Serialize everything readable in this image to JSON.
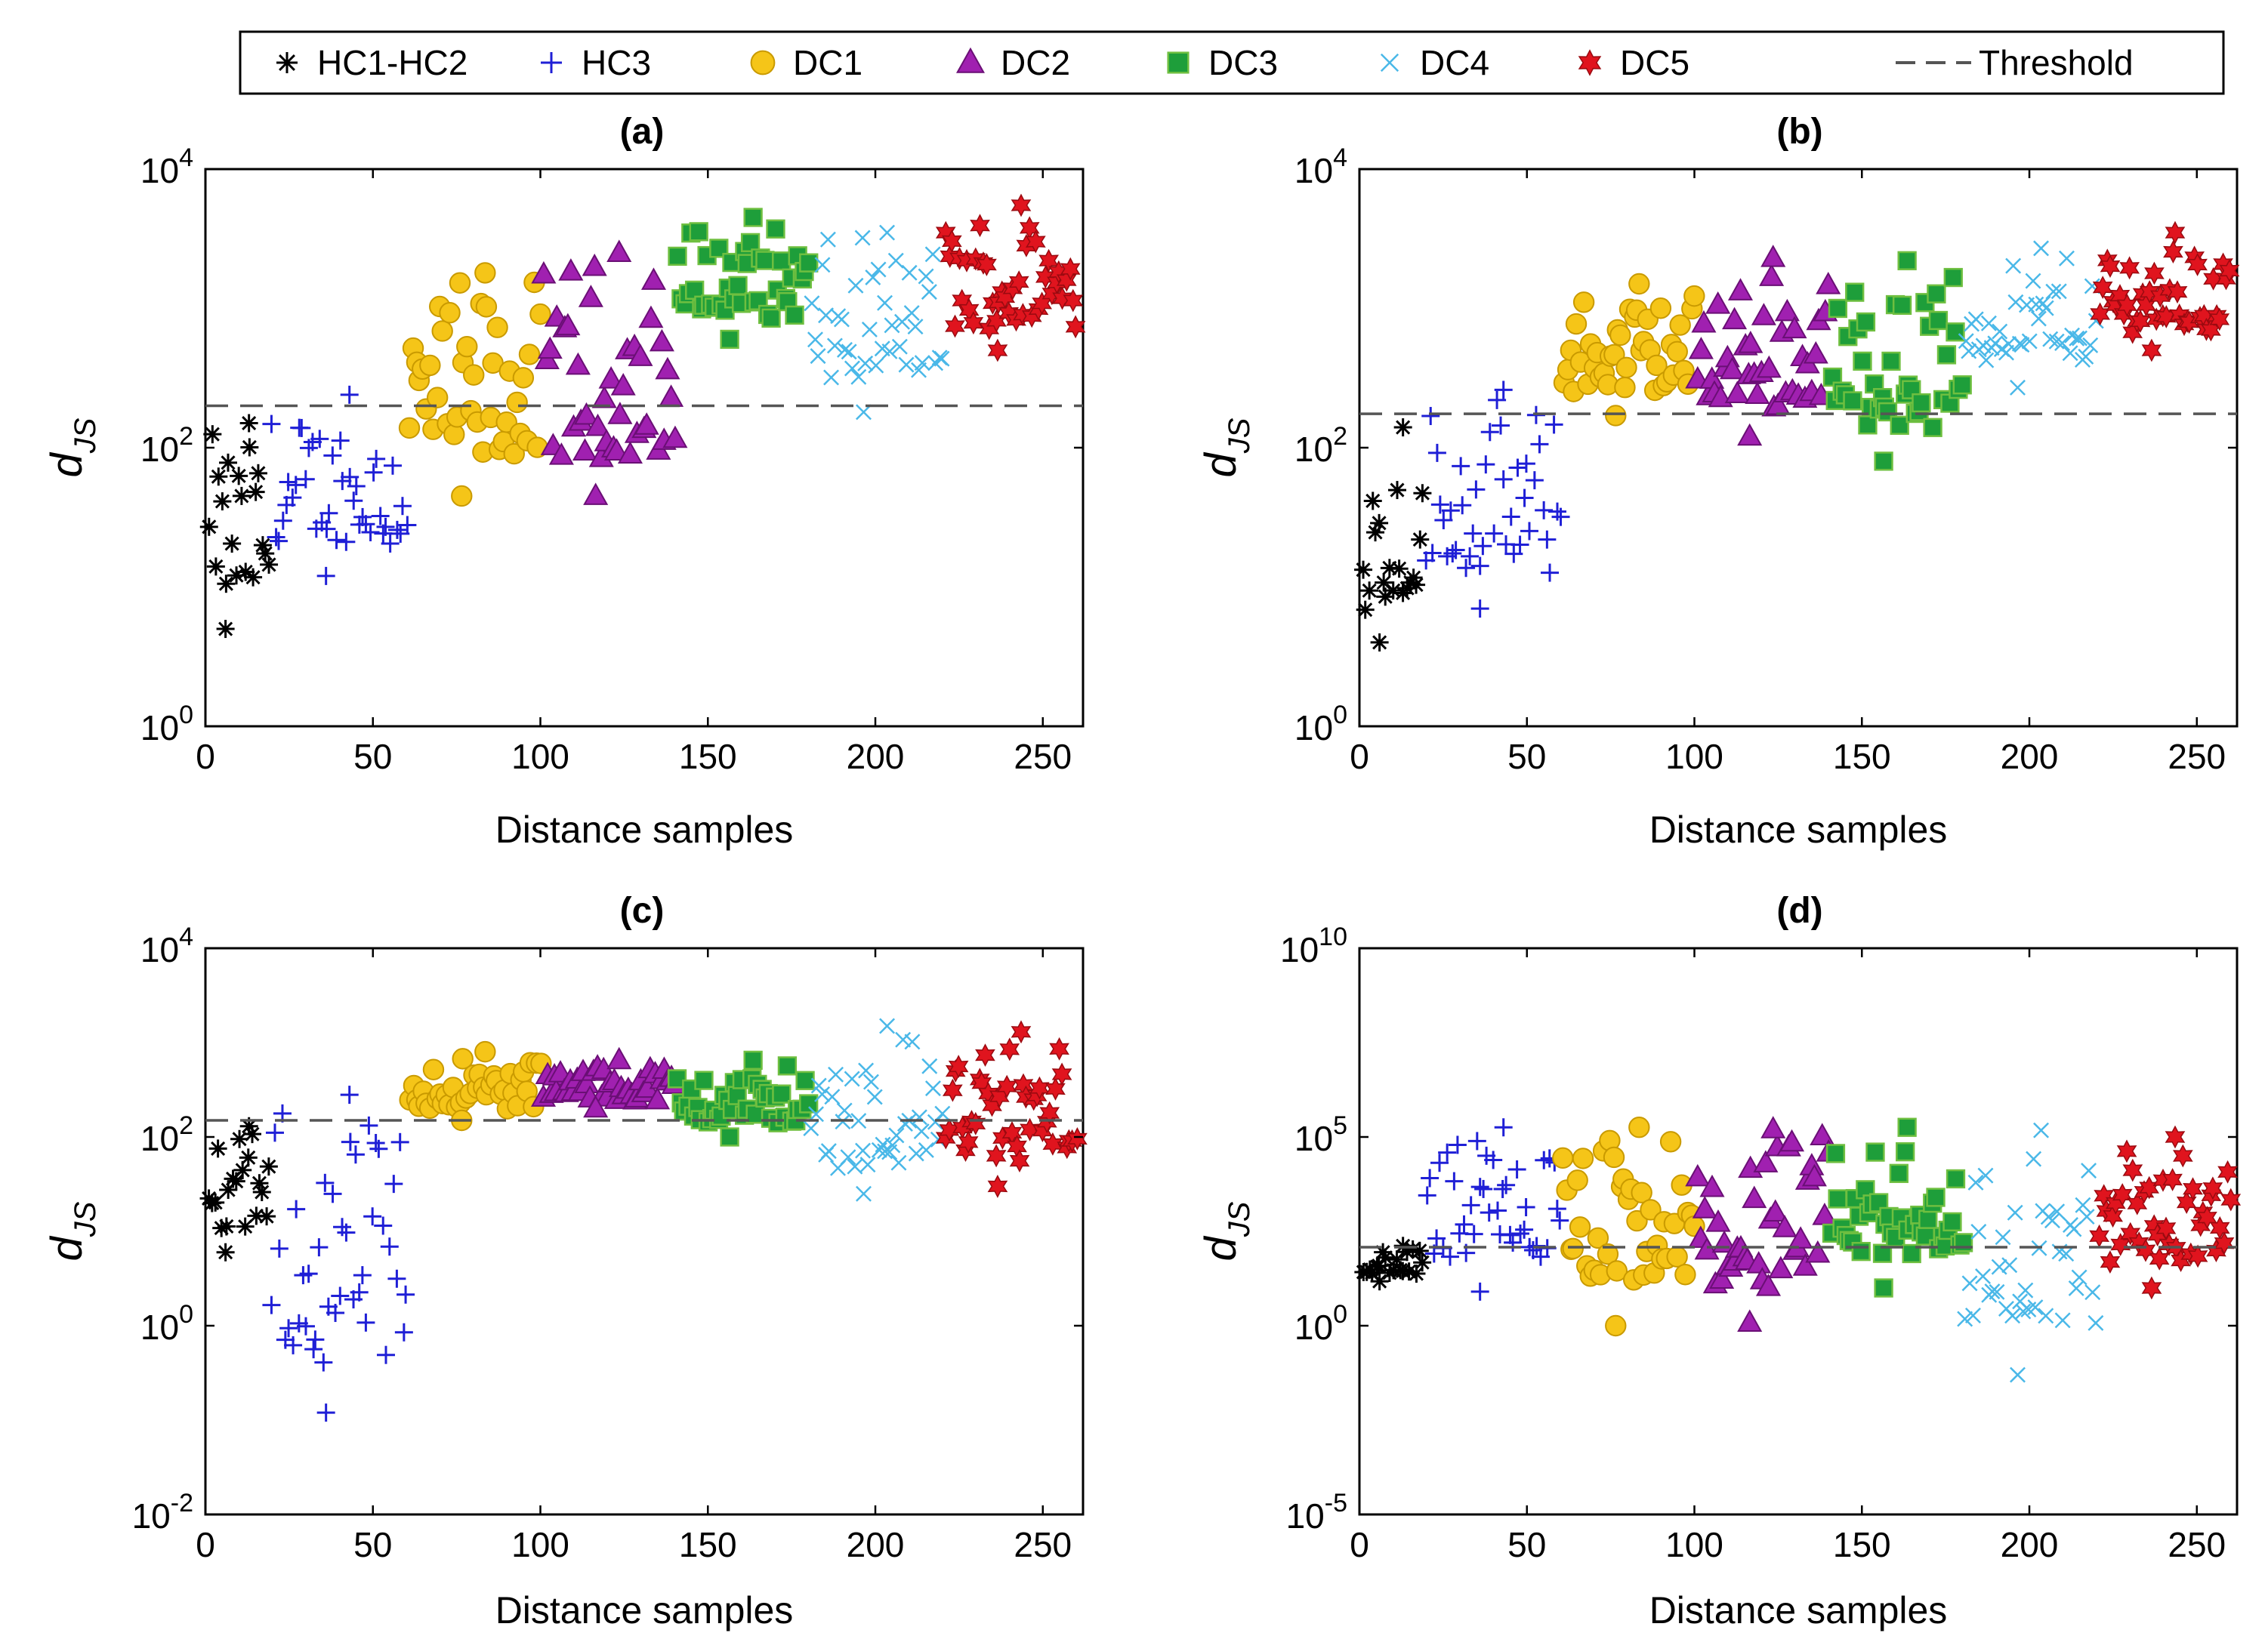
{
  "legend": {
    "entries": [
      {
        "key": "HC1-HC2",
        "label": "HC1-HC2",
        "marker": "asterisk",
        "color": "#000000"
      },
      {
        "key": "HC3",
        "label": "HC3",
        "marker": "plus",
        "color": "#1f1fd6"
      },
      {
        "key": "DC1",
        "label": "DC1",
        "marker": "circle",
        "color": "#f5c518"
      },
      {
        "key": "DC2",
        "label": "DC2",
        "marker": "triangle",
        "color": "#a020b0"
      },
      {
        "key": "DC3",
        "label": "DC3",
        "marker": "square",
        "color": "#1e9e3a"
      },
      {
        "key": "DC4",
        "label": "DC4",
        "marker": "x",
        "color": "#4ab8e8"
      },
      {
        "key": "DC5",
        "label": "DC5",
        "marker": "hexagram",
        "color": "#e0141e"
      },
      {
        "key": "Threshold",
        "label": "Threshold",
        "marker": "dashed-line",
        "color": "#555555"
      }
    ]
  },
  "chart_data": [
    {
      "id": "a",
      "type": "scatter",
      "title": "(a)",
      "xlabel": "Distance samples",
      "ylabel_main": "d",
      "ylabel_sub": "JS",
      "yscale": "log",
      "xlim": [
        0,
        262
      ],
      "ylim_exp": [
        0,
        4
      ],
      "x_ticks": [
        0,
        50,
        100,
        150,
        200,
        250
      ],
      "y_ticks": [
        {
          "exp": 0,
          "base": "10",
          "sup": "0"
        },
        {
          "exp": 2,
          "base": "10",
          "sup": "2"
        },
        {
          "exp": 4,
          "base": "10",
          "sup": "4"
        }
      ],
      "threshold": 200,
      "groups": [
        {
          "key": "HC1-HC2",
          "x_range": [
            1,
            19
          ],
          "y_min": 5,
          "y_max": 150
        },
        {
          "key": "HC3",
          "x_range": [
            20,
            60
          ],
          "y_min": 12,
          "y_max": 240
        },
        {
          "key": "DC1",
          "x_range": [
            61,
            100
          ],
          "y_min": 45,
          "y_max": 1800
        },
        {
          "key": "DC2",
          "x_range": [
            101,
            140
          ],
          "y_min": 45,
          "y_max": 2500
        },
        {
          "key": "DC3",
          "x_range": [
            141,
            180
          ],
          "y_min": 600,
          "y_max": 4500
        },
        {
          "key": "DC4",
          "x_range": [
            181,
            220
          ],
          "y_min": 180,
          "y_max": 3500
        },
        {
          "key": "DC5",
          "x_range": [
            221,
            260
          ],
          "y_min": 500,
          "y_max": 5500
        }
      ]
    },
    {
      "id": "b",
      "type": "scatter",
      "title": "(b)",
      "xlabel": "Distance samples",
      "ylabel_main": "d",
      "ylabel_sub": "JS",
      "yscale": "log",
      "xlim": [
        0,
        262
      ],
      "ylim_exp": [
        0,
        4
      ],
      "x_ticks": [
        0,
        50,
        100,
        150,
        200,
        250
      ],
      "y_ticks": [
        {
          "exp": 0,
          "base": "10",
          "sup": "0"
        },
        {
          "exp": 2,
          "base": "10",
          "sup": "2"
        },
        {
          "exp": 4,
          "base": "10",
          "sup": "4"
        }
      ],
      "threshold": 175,
      "groups": [
        {
          "key": "HC1-HC2",
          "x_range": [
            1,
            19
          ],
          "y_min": 4,
          "y_max": 140
        },
        {
          "key": "HC3",
          "x_range": [
            20,
            60
          ],
          "y_min": 7,
          "y_max": 260
        },
        {
          "key": "DC1",
          "x_range": [
            61,
            100
          ],
          "y_min": 170,
          "y_max": 1500
        },
        {
          "key": "DC2",
          "x_range": [
            101,
            140
          ],
          "y_min": 120,
          "y_max": 2300
        },
        {
          "key": "DC3",
          "x_range": [
            141,
            180
          ],
          "y_min": 80,
          "y_max": 2200
        },
        {
          "key": "DC4",
          "x_range": [
            181,
            220
          ],
          "y_min": 270,
          "y_max": 2700
        },
        {
          "key": "DC5",
          "x_range": [
            221,
            260
          ],
          "y_min": 500,
          "y_max": 3500
        }
      ]
    },
    {
      "id": "c",
      "type": "scatter",
      "title": "(c)",
      "xlabel": "Distance samples",
      "ylabel_main": "d",
      "ylabel_sub": "JS",
      "yscale": "log",
      "xlim": [
        0,
        262
      ],
      "ylim_exp": [
        -2,
        4
      ],
      "x_ticks": [
        0,
        50,
        100,
        150,
        200,
        250
      ],
      "y_ticks": [
        {
          "exp": -2,
          "base": "10",
          "sup": "-2"
        },
        {
          "exp": 0,
          "base": "10",
          "sup": "0"
        },
        {
          "exp": 2,
          "base": "10",
          "sup": "2"
        },
        {
          "exp": 4,
          "base": "10",
          "sup": "4"
        }
      ],
      "threshold": 150,
      "groups": [
        {
          "key": "HC1-HC2",
          "x_range": [
            1,
            19
          ],
          "y_min": 6,
          "y_max": 130
        },
        {
          "key": "HC3",
          "x_range": [
            20,
            60
          ],
          "y_min": 0.12,
          "y_max": 280
        },
        {
          "key": "DC1",
          "x_range": [
            61,
            100
          ],
          "y_min": 150,
          "y_max": 800
        },
        {
          "key": "DC2",
          "x_range": [
            101,
            140
          ],
          "y_min": 200,
          "y_max": 650
        },
        {
          "key": "DC3",
          "x_range": [
            141,
            180
          ],
          "y_min": 100,
          "y_max": 650
        },
        {
          "key": "DC4",
          "x_range": [
            181,
            220
          ],
          "y_min": 25,
          "y_max": 1500
        },
        {
          "key": "DC5",
          "x_range": [
            221,
            260
          ],
          "y_min": 30,
          "y_max": 1300
        }
      ]
    },
    {
      "id": "d",
      "type": "scatter",
      "title": "(d)",
      "xlabel": "Distance samples",
      "ylabel_main": "d",
      "ylabel_sub": "JS",
      "yscale": "log",
      "xlim": [
        0,
        262
      ],
      "ylim_exp": [
        -5,
        10
      ],
      "x_ticks": [
        0,
        50,
        100,
        150,
        200,
        250
      ],
      "y_ticks": [
        {
          "exp": -5,
          "base": "10",
          "sup": "-5"
        },
        {
          "exp": 0,
          "base": "10",
          "sup": "0"
        },
        {
          "exp": 5,
          "base": "10",
          "sup": "5"
        },
        {
          "exp": 10,
          "base": "10",
          "sup": "10"
        }
      ],
      "threshold": 120,
      "groups": [
        {
          "key": "HC1-HC2",
          "x_range": [
            1,
            19
          ],
          "y_min": 15,
          "y_max": 130
        },
        {
          "key": "HC3",
          "x_range": [
            20,
            60
          ],
          "y_min": 8,
          "y_max": 180000
        },
        {
          "key": "DC1",
          "x_range": [
            61,
            100
          ],
          "y_min": 1,
          "y_max": 180000
        },
        {
          "key": "DC2",
          "x_range": [
            101,
            140
          ],
          "y_min": 1.2,
          "y_max": 160000
        },
        {
          "key": "DC3",
          "x_range": [
            141,
            180
          ],
          "y_min": 10,
          "y_max": 180000
        },
        {
          "key": "DC4",
          "x_range": [
            181,
            220
          ],
          "y_min": 0.05,
          "y_max": 150000
        },
        {
          "key": "DC5",
          "x_range": [
            221,
            260
          ],
          "y_min": 10,
          "y_max": 100000
        }
      ]
    }
  ]
}
